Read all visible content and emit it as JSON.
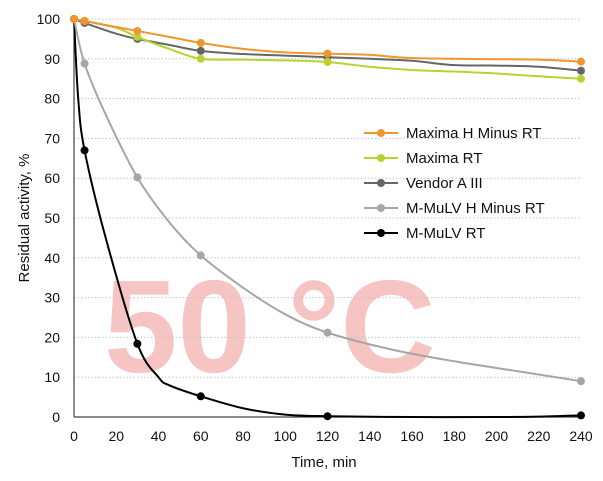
{
  "chart_data": {
    "type": "line",
    "xlabel": "Time, min",
    "ylabel": "Residual activity, %",
    "xlim": [
      0,
      240
    ],
    "ylim": [
      0,
      100
    ],
    "xticks": [
      0,
      20,
      40,
      60,
      80,
      100,
      120,
      140,
      160,
      180,
      200,
      220,
      240
    ],
    "yticks": [
      0,
      10,
      20,
      30,
      40,
      50,
      60,
      70,
      80,
      90,
      100
    ],
    "grid": "horizontal dotted",
    "legend_position": "right",
    "watermark": "50 °C",
    "watermark_color": "#f7c4c4",
    "series": [
      {
        "name": "Maxima H Minus RT",
        "color": "#f0962e",
        "markers": [
          [
            0,
            100
          ],
          [
            5,
            99.5
          ],
          [
            30,
            97
          ],
          [
            60,
            94
          ],
          [
            120,
            91.3
          ],
          [
            240,
            89.3
          ]
        ],
        "curve": [
          [
            0,
            100
          ],
          [
            5,
            99.5
          ],
          [
            15,
            98.5
          ],
          [
            30,
            97
          ],
          [
            45,
            95.5
          ],
          [
            60,
            94
          ],
          [
            80,
            92.5
          ],
          [
            100,
            91.6
          ],
          [
            120,
            91.3
          ],
          [
            140,
            91
          ],
          [
            160,
            90.2
          ],
          [
            200,
            89.9
          ],
          [
            220,
            89.8
          ],
          [
            240,
            89.3
          ]
        ]
      },
      {
        "name": "Maxima RT",
        "color": "#bad22f",
        "markers": [
          [
            0,
            100
          ],
          [
            5,
            99.5
          ],
          [
            30,
            95.5
          ],
          [
            60,
            90
          ],
          [
            120,
            89.2
          ],
          [
            240,
            85
          ]
        ],
        "curve": [
          [
            0,
            100
          ],
          [
            5,
            99.5
          ],
          [
            20,
            97.8
          ],
          [
            30,
            95.5
          ],
          [
            45,
            92.5
          ],
          [
            60,
            90
          ],
          [
            80,
            89.8
          ],
          [
            100,
            89.6
          ],
          [
            120,
            89.2
          ],
          [
            140,
            88
          ],
          [
            160,
            87.2
          ],
          [
            180,
            86.8
          ],
          [
            200,
            86.3
          ],
          [
            220,
            85.6
          ],
          [
            240,
            85
          ]
        ]
      },
      {
        "name": "Vendor A III",
        "color": "#666666",
        "markers": [
          [
            0,
            100
          ],
          [
            5,
            99
          ],
          [
            30,
            95
          ],
          [
            60,
            92
          ],
          [
            120,
            90.4
          ],
          [
            240,
            87
          ]
        ],
        "curve": [
          [
            0,
            100
          ],
          [
            5,
            99
          ],
          [
            20,
            96.3
          ],
          [
            30,
            95
          ],
          [
            45,
            93.5
          ],
          [
            60,
            92
          ],
          [
            80,
            91.2
          ],
          [
            100,
            90.8
          ],
          [
            120,
            90.4
          ],
          [
            140,
            90
          ],
          [
            160,
            89.5
          ],
          [
            180,
            88.4
          ],
          [
            200,
            88.3
          ],
          [
            220,
            88
          ],
          [
            240,
            87
          ]
        ]
      },
      {
        "name": "M-MuLV H Minus RT",
        "color": "#a6a6a6",
        "markers": [
          [
            0,
            100
          ],
          [
            5,
            88.8
          ],
          [
            30,
            60.2
          ],
          [
            60,
            40.6
          ],
          [
            120,
            21.2
          ],
          [
            240,
            9
          ]
        ],
        "curve": [
          [
            0,
            100
          ],
          [
            5,
            88.8
          ],
          [
            15,
            76
          ],
          [
            30,
            60.2
          ],
          [
            45,
            49
          ],
          [
            60,
            40.6
          ],
          [
            80,
            32.5
          ],
          [
            100,
            25.8
          ],
          [
            120,
            21.2
          ],
          [
            150,
            17
          ],
          [
            180,
            14
          ],
          [
            210,
            11.5
          ],
          [
            240,
            9
          ]
        ]
      },
      {
        "name": "M-MuLV RT",
        "color": "#000000",
        "markers": [
          [
            0,
            100
          ],
          [
            5,
            67
          ],
          [
            30,
            18.4
          ],
          [
            60,
            5.2
          ],
          [
            120,
            0.2
          ],
          [
            240,
            0.4
          ]
        ],
        "curve": [
          [
            0,
            100
          ],
          [
            2,
            80
          ],
          [
            5,
            67
          ],
          [
            15,
            45
          ],
          [
            30,
            18.4
          ],
          [
            40,
            10
          ],
          [
            45,
            8
          ],
          [
            60,
            5.2
          ],
          [
            80,
            2.2
          ],
          [
            100,
            0.6
          ],
          [
            120,
            0.2
          ],
          [
            160,
            0
          ],
          [
            200,
            0
          ],
          [
            220,
            0.1
          ],
          [
            240,
            0.4
          ]
        ]
      }
    ]
  }
}
